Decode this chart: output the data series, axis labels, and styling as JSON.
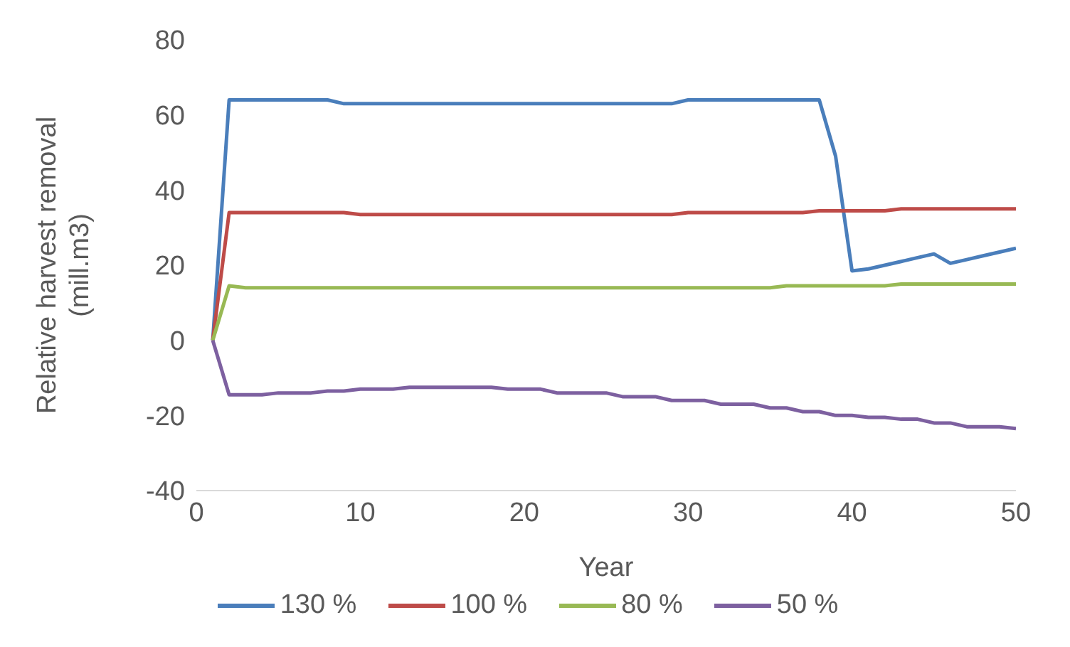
{
  "chart_data": {
    "type": "line",
    "xlabel": "Year",
    "ylabel": "Relative harvest removal (mill.m3)",
    "x": [
      1,
      2,
      3,
      4,
      5,
      6,
      7,
      8,
      9,
      10,
      11,
      12,
      13,
      14,
      15,
      16,
      17,
      18,
      19,
      20,
      21,
      22,
      23,
      24,
      25,
      26,
      27,
      28,
      29,
      30,
      31,
      32,
      33,
      34,
      35,
      36,
      37,
      38,
      39,
      40,
      41,
      42,
      43,
      44,
      45,
      46,
      47,
      48,
      49,
      50
    ],
    "series": [
      {
        "name": "130 %",
        "color": "#4a7ebb",
        "values": [
          0,
          64,
          64,
          64,
          64,
          64,
          64,
          64,
          63,
          63,
          63,
          63,
          63,
          63,
          63,
          63,
          63,
          63,
          63,
          63,
          63,
          63,
          63,
          63,
          63,
          63,
          63,
          63,
          63,
          64,
          64,
          64,
          64,
          64,
          64,
          64,
          64,
          64,
          49,
          18.5,
          19,
          20,
          21,
          22,
          23,
          20.5,
          21.5,
          22.5,
          23.5,
          24.5
        ]
      },
      {
        "name": "100 %",
        "color": "#be4b48",
        "values": [
          0,
          34,
          34,
          34,
          34,
          34,
          34,
          34,
          34,
          33.5,
          33.5,
          33.5,
          33.5,
          33.5,
          33.5,
          33.5,
          33.5,
          33.5,
          33.5,
          33.5,
          33.5,
          33.5,
          33.5,
          33.5,
          33.5,
          33.5,
          33.5,
          33.5,
          33.5,
          34,
          34,
          34,
          34,
          34,
          34,
          34,
          34,
          34.5,
          34.5,
          34.5,
          34.5,
          34.5,
          35,
          35,
          35,
          35,
          35,
          35,
          35,
          35
        ]
      },
      {
        "name": "80 %",
        "color": "#98b954",
        "values": [
          0,
          14.5,
          14,
          14,
          14,
          14,
          14,
          14,
          14,
          14,
          14,
          14,
          14,
          14,
          14,
          14,
          14,
          14,
          14,
          14,
          14,
          14,
          14,
          14,
          14,
          14,
          14,
          14,
          14,
          14,
          14,
          14,
          14,
          14,
          14,
          14.5,
          14.5,
          14.5,
          14.5,
          14.5,
          14.5,
          14.5,
          15,
          15,
          15,
          15,
          15,
          15,
          15,
          15
        ]
      },
      {
        "name": "50 %",
        "color": "#7d60a0",
        "values": [
          0,
          -14.5,
          -14.5,
          -14.5,
          -14,
          -14,
          -14,
          -13.5,
          -13.5,
          -13,
          -13,
          -13,
          -12.5,
          -12.5,
          -12.5,
          -12.5,
          -12.5,
          -12.5,
          -13,
          -13,
          -13,
          -14,
          -14,
          -14,
          -14,
          -15,
          -15,
          -15,
          -16,
          -16,
          -16,
          -17,
          -17,
          -17,
          -18,
          -18,
          -19,
          -19,
          -20,
          -20,
          -20.5,
          -20.5,
          -21,
          -21,
          -22,
          -22,
          -23,
          -23,
          -23,
          -23.5
        ]
      }
    ],
    "xlim": [
      0,
      50
    ],
    "xticks": [
      0,
      10,
      20,
      30,
      40,
      50
    ],
    "ylim": [
      -40,
      80
    ],
    "yticks": [
      -40,
      -20,
      0,
      20,
      40,
      60,
      80
    ],
    "grid": false,
    "legend": "bottom",
    "marker": "none",
    "line_style": "solid"
  }
}
